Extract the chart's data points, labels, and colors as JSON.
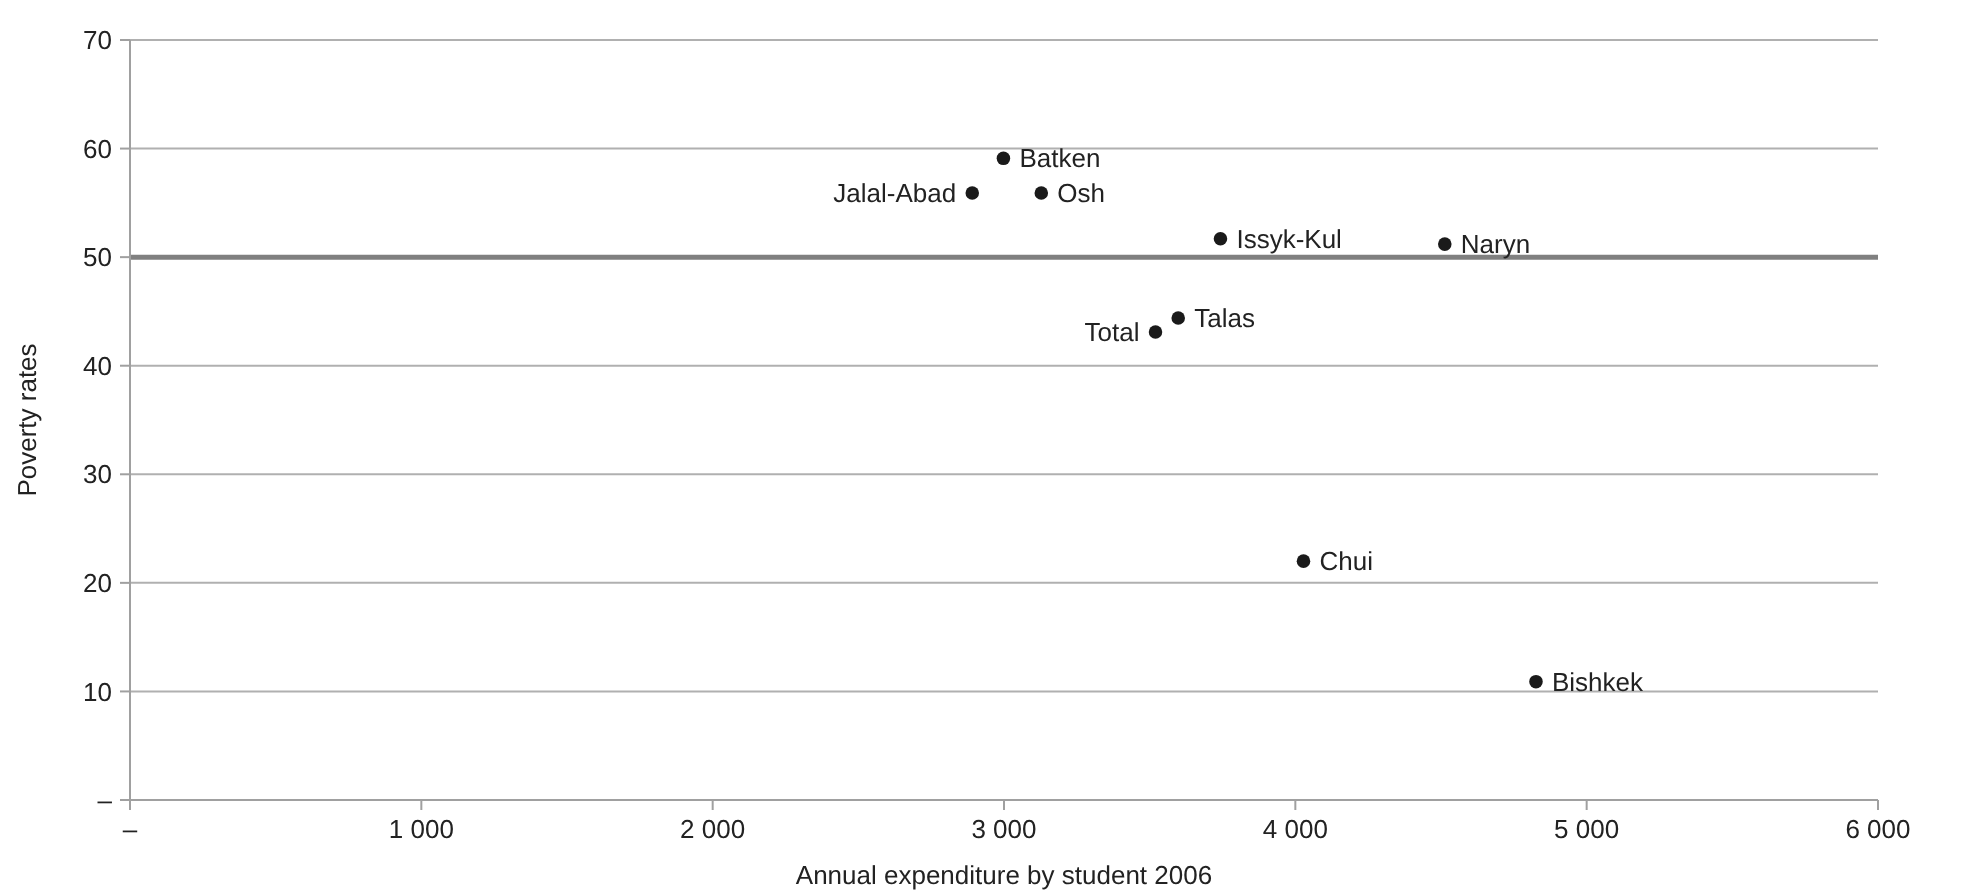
{
  "chart_data": {
    "type": "scatter",
    "xlabel": "Annual expenditure by student 2006",
    "ylabel": "Poverty rates",
    "xlim": [
      0,
      6000
    ],
    "ylim": [
      0,
      70
    ],
    "xticks": [
      {
        "value": 0,
        "label": "–"
      },
      {
        "value": 1000,
        "label": "1 000"
      },
      {
        "value": 2000,
        "label": "2 000"
      },
      {
        "value": 3000,
        "label": "3 000"
      },
      {
        "value": 4000,
        "label": "4 000"
      },
      {
        "value": 5000,
        "label": "5 000"
      },
      {
        "value": 6000,
        "label": "6 000"
      }
    ],
    "yticks": [
      {
        "value": 0,
        "label": "–"
      },
      10,
      20,
      30,
      40,
      50,
      60,
      70
    ],
    "grid": "y",
    "marker": "circle",
    "ref_lines": [
      {
        "axis": "y",
        "value": 50,
        "color": "#808080"
      }
    ],
    "series": [
      {
        "name": "Batken",
        "color": "#1a1a1a",
        "x": [
          2998
        ],
        "values": [
          59.1
        ]
      },
      {
        "name": "Jalal-Abad",
        "color": "#1a1a1a",
        "x": [
          2891
        ],
        "values": [
          55.9
        ]
      },
      {
        "name": "Osh",
        "color": "#1a1a1a",
        "x": [
          3128
        ],
        "values": [
          55.9
        ]
      },
      {
        "name": "Issyk-Kul",
        "color": "#1a1a1a",
        "x": [
          3743
        ],
        "values": [
          51.7
        ]
      },
      {
        "name": "Naryn",
        "color": "#1a1a1a",
        "x": [
          4513
        ],
        "values": [
          51.2
        ]
      },
      {
        "name": "Talas",
        "color": "#1a1a1a",
        "x": [
          3598
        ],
        "values": [
          44.4
        ]
      },
      {
        "name": "Total",
        "color": "#1a1a1a",
        "x": [
          3520
        ],
        "values": [
          43.1
        ]
      },
      {
        "name": "Chui",
        "color": "#1a1a1a",
        "x": [
          4028
        ],
        "values": [
          22.0
        ]
      },
      {
        "name": "Bishkek",
        "color": "#1a1a1a",
        "x": [
          4826
        ],
        "values": [
          10.9
        ]
      }
    ]
  }
}
